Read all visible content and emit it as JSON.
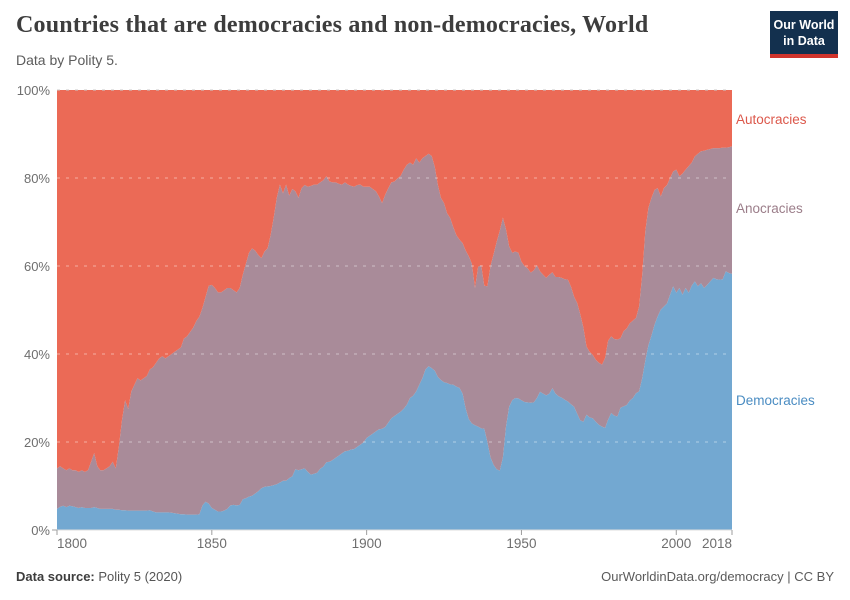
{
  "header": {
    "title": "Countries that are democracies and non-democracies, World",
    "subtitle": "Data by Polity 5."
  },
  "logo": {
    "line1": "Our World",
    "line2": "in Data",
    "bg_color": "#13304e",
    "bar_color": "#d0342c"
  },
  "footer": {
    "source_label": "Data source:",
    "source_value": " Polity 5 (2020)",
    "right": "OurWorldinData.org/democracy | CC BY"
  },
  "chart_data": {
    "type": "area",
    "stacked_percent": true,
    "x_range": [
      1800,
      2018
    ],
    "x_step": 1,
    "ylim": [
      0,
      100
    ],
    "grid": "dashed horizontal at 20/40/60/80/100",
    "legend_position": "right edge, colored text labels",
    "y_ticks": [
      {
        "label": "0%",
        "value": 0
      },
      {
        "label": "20%",
        "value": 20
      },
      {
        "label": "40%",
        "value": 40
      },
      {
        "label": "60%",
        "value": 60
      },
      {
        "label": "80%",
        "value": 80
      },
      {
        "label": "100%",
        "value": 100
      }
    ],
    "x_ticks": [
      {
        "label": "1800",
        "value": 1800
      },
      {
        "label": "1850",
        "value": 1850
      },
      {
        "label": "1900",
        "value": 1900
      },
      {
        "label": "1950",
        "value": 1950
      },
      {
        "label": "2000",
        "value": 2000
      },
      {
        "label": "2018",
        "value": 2018
      }
    ],
    "series": [
      {
        "name": "Democracies",
        "color": "#73a8d1",
        "label_color": "#4a8cc2",
        "values": [
          4.8,
          5.3,
          5.5,
          5.2,
          5.5,
          5.4,
          5.2,
          5.0,
          5.2,
          5.0,
          5.0,
          5.0,
          5.2,
          5.0,
          4.8,
          4.8,
          4.8,
          4.8,
          4.8,
          4.6,
          4.6,
          4.5,
          4.5,
          4.4,
          4.4,
          4.4,
          4.4,
          4.4,
          4.4,
          4.4,
          4.5,
          4.2,
          4.0,
          4.0,
          4.0,
          4.0,
          4.0,
          3.9,
          3.8,
          3.7,
          3.6,
          3.6,
          3.5,
          3.5,
          3.5,
          3.5,
          3.6,
          5.6,
          6.4,
          6.0,
          5.0,
          4.6,
          4.2,
          4.2,
          4.4,
          4.8,
          5.6,
          5.7,
          5.6,
          5.7,
          7.0,
          7.2,
          7.6,
          7.8,
          8.3,
          8.8,
          9.5,
          9.8,
          9.9,
          10.0,
          10.2,
          10.4,
          10.8,
          11.2,
          11.2,
          11.8,
          12.2,
          13.8,
          13.6,
          13.8,
          14.0,
          13.2,
          12.6,
          12.8,
          13.0,
          13.9,
          14.4,
          15.4,
          15.5,
          15.9,
          16.4,
          16.9,
          17.4,
          17.9,
          18.0,
          18.3,
          18.4,
          18.9,
          19.4,
          19.9,
          20.9,
          21.4,
          21.9,
          22.4,
          22.9,
          23.0,
          23.4,
          24.4,
          25.4,
          25.9,
          26.4,
          26.9,
          27.6,
          28.5,
          30.0,
          30.5,
          31.5,
          33.0,
          34.5,
          36.5,
          37.2,
          36.8,
          36.2,
          34.8,
          34.1,
          33.6,
          33.4,
          33.1,
          33.0,
          32.6,
          32.3,
          31.0,
          27.6,
          25.2,
          24.2,
          23.8,
          23.5,
          23.1,
          23.0,
          20.0,
          16.5,
          14.8,
          13.8,
          13.5,
          16.5,
          23.5,
          28.0,
          29.5,
          30.0,
          29.9,
          29.5,
          29.1,
          29.0,
          28.9,
          29.0,
          30.0,
          31.4,
          31.0,
          30.6,
          31.0,
          32.2,
          31.0,
          30.4,
          30.1,
          29.6,
          29.2,
          28.6,
          28.0,
          26.4,
          24.9,
          24.6,
          26.2,
          25.6,
          25.4,
          24.6,
          23.9,
          23.5,
          23.2,
          25.1,
          26.6,
          26.0,
          25.8,
          27.8,
          28.1,
          28.4,
          29.4,
          30.0,
          31.1,
          31.5,
          34.5,
          38.5,
          42.0,
          44.2,
          46.7,
          48.6,
          50.1,
          50.8,
          51.5,
          53.5,
          55.4,
          53.9,
          55.0,
          53.5,
          55.0,
          53.9,
          55.5,
          56.5,
          55.4,
          56.1,
          55.0,
          55.7,
          56.5,
          57.3,
          57.0,
          56.9,
          57.0,
          58.8,
          58.4,
          58.2
        ]
      },
      {
        "name": "Anocracies",
        "color": "#a98b99",
        "label_color": "#9b7d89",
        "values": [
          9.2,
          9.2,
          8.5,
          8.4,
          8.5,
          8.2,
          8.4,
          8.2,
          8.4,
          8.2,
          8.6,
          10.5,
          12.3,
          9.5,
          8.8,
          8.8,
          9.2,
          9.7,
          10.7,
          9.4,
          14.4,
          20.5,
          25.0,
          23.1,
          27.1,
          28.6,
          30.1,
          29.6,
          30.1,
          30.6,
          32.0,
          32.8,
          34.0,
          35.0,
          35.5,
          35.0,
          35.5,
          36.1,
          36.7,
          37.3,
          37.9,
          39.9,
          40.5,
          41.5,
          42.5,
          44.0,
          44.9,
          44.9,
          46.6,
          49.5,
          50.7,
          50.4,
          49.8,
          49.8,
          50.1,
          50.2,
          49.4,
          48.8,
          48.4,
          49.3,
          51.0,
          53.3,
          55.4,
          56.2,
          55.2,
          53.7,
          52.3,
          53.5,
          54.1,
          57.0,
          60.8,
          65.1,
          67.7,
          65.3,
          67.3,
          64.2,
          65.3,
          63.2,
          61.9,
          63.9,
          64.4,
          64.8,
          65.6,
          65.7,
          65.5,
          65.1,
          65.1,
          65.0,
          63.7,
          63.1,
          62.6,
          61.8,
          61.1,
          61.1,
          60.5,
          59.9,
          59.6,
          59.5,
          59.1,
          58.1,
          57.1,
          56.6,
          55.6,
          54.6,
          52.9,
          51.3,
          52.8,
          53.3,
          53.6,
          53.3,
          53.5,
          53.6,
          54.3,
          54.5,
          53.5,
          52.5,
          53.0,
          50.5,
          50.0,
          48.5,
          48.3,
          48.2,
          46.3,
          43.7,
          41.4,
          40.7,
          38.6,
          37.8,
          35.8,
          34.4,
          33.7,
          34.2,
          35.9,
          37.0,
          36.3,
          31.2,
          36.3,
          37.1,
          32.5,
          35.4,
          43.5,
          47.9,
          51.7,
          54.5,
          54.5,
          44.8,
          36.5,
          33.5,
          33.3,
          33.1,
          31.5,
          30.9,
          30.5,
          29.6,
          30.0,
          30.2,
          27.4,
          27.0,
          26.7,
          27.0,
          26.4,
          26.5,
          27.1,
          27.2,
          27.4,
          27.7,
          26.7,
          25.0,
          25.2,
          24.1,
          21.4,
          15.5,
          14.9,
          14.4,
          14.1,
          14.1,
          14.1,
          15.9,
          17.9,
          17.4,
          17.4,
          17.5,
          15.8,
          17.1,
          17.4,
          17.6,
          17.6,
          17.1,
          19.3,
          23.5,
          29.4,
          31.2,
          31.3,
          30.6,
          29.1,
          25.7,
          26.9,
          26.9,
          26.5,
          26.1,
          28.0,
          25.4,
          27.5,
          26.9,
          28.8,
          28.0,
          28.4,
          30.1,
          30.0,
          31.2,
          30.7,
          30.1,
          29.5,
          29.8,
          29.9,
          29.9,
          28.1,
          28.6,
          29.0
        ]
      },
      {
        "name": "Autocracies",
        "color": "#eb6a56",
        "label_color": "#dc584b",
        "values": [
          86.0,
          85.5,
          86.0,
          86.4,
          86.0,
          86.4,
          86.4,
          86.8,
          86.4,
          86.8,
          86.4,
          84.5,
          82.5,
          85.5,
          86.4,
          86.4,
          86.0,
          85.5,
          84.5,
          86.0,
          81.0,
          75.0,
          70.5,
          72.5,
          68.5,
          67.0,
          65.5,
          66.0,
          65.5,
          65.0,
          63.5,
          63.0,
          62.0,
          61.0,
          60.5,
          61.0,
          60.5,
          60.0,
          59.5,
          59.0,
          58.5,
          56.5,
          56.0,
          55.0,
          54.0,
          52.5,
          51.5,
          49.5,
          47.0,
          44.5,
          44.3,
          45.0,
          46.0,
          46.0,
          45.5,
          45.0,
          45.0,
          45.5,
          46.0,
          45.0,
          42.0,
          39.5,
          37.0,
          36.0,
          36.5,
          37.5,
          38.2,
          36.7,
          36.0,
          33.0,
          29.0,
          24.5,
          21.5,
          23.5,
          21.5,
          24.0,
          22.5,
          23.0,
          24.5,
          22.3,
          21.6,
          22.0,
          21.8,
          21.5,
          21.5,
          21.0,
          20.5,
          19.6,
          20.8,
          21.0,
          21.0,
          21.3,
          21.5,
          21.0,
          21.5,
          21.8,
          22.0,
          21.6,
          21.5,
          22.0,
          22.0,
          22.0,
          22.5,
          23.0,
          24.2,
          25.7,
          23.8,
          22.3,
          21.0,
          20.8,
          20.1,
          19.5,
          18.1,
          17.0,
          16.5,
          17.0,
          15.5,
          16.5,
          15.5,
          15.0,
          14.5,
          15.0,
          17.5,
          21.5,
          24.5,
          25.7,
          28.0,
          29.1,
          31.2,
          33.0,
          34.0,
          34.8,
          36.5,
          37.8,
          39.5,
          45.0,
          40.2,
          39.8,
          44.5,
          44.6,
          40.0,
          37.3,
          34.5,
          32.0,
          29.0,
          31.7,
          35.5,
          37.0,
          36.7,
          37.0,
          39.0,
          40.0,
          40.5,
          41.5,
          41.0,
          39.8,
          41.2,
          42.0,
          42.7,
          42.0,
          41.4,
          42.5,
          42.5,
          42.7,
          43.0,
          43.1,
          44.7,
          47.0,
          48.4,
          51.0,
          54.0,
          58.3,
          59.5,
          60.2,
          61.3,
          62.0,
          62.4,
          60.9,
          57.0,
          56.0,
          56.6,
          56.7,
          56.4,
          54.8,
          54.2,
          53.0,
          52.4,
          51.8,
          49.2,
          42.0,
          32.1,
          26.8,
          24.5,
          22.7,
          22.3,
          24.2,
          22.3,
          21.6,
          20.0,
          18.5,
          18.1,
          19.6,
          19.0,
          18.1,
          17.3,
          16.5,
          15.1,
          14.5,
          13.9,
          13.8,
          13.6,
          13.4,
          13.2,
          13.2,
          13.2,
          13.1,
          13.1,
          13.0,
          12.8
        ]
      }
    ]
  }
}
